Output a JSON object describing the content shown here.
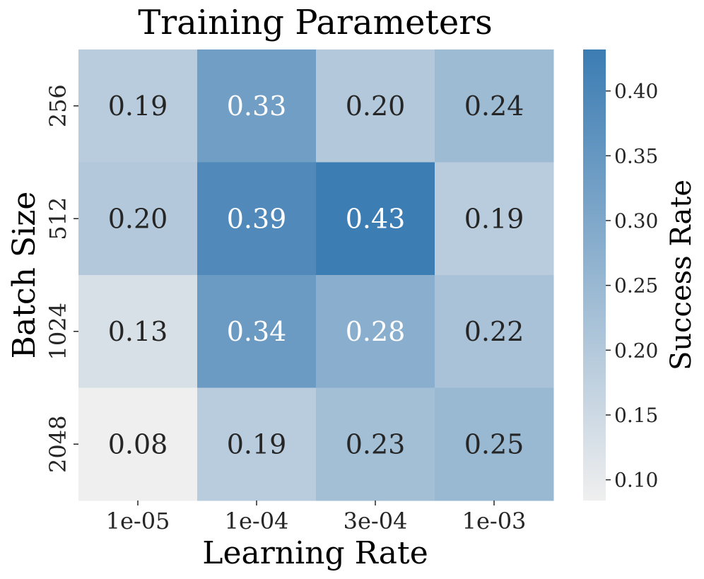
{
  "chart_data": {
    "type": "heatmap",
    "title": "Training Parameters",
    "xlabel": "Learning Rate",
    "ylabel": "Batch Size",
    "x_categories": [
      "1e-05",
      "1e-04",
      "3e-04",
      "1e-03"
    ],
    "y_categories": [
      "256",
      "512",
      "1024",
      "2048"
    ],
    "values": [
      [
        0.19,
        0.33,
        0.2,
        0.24
      ],
      [
        0.2,
        0.39,
        0.43,
        0.19
      ],
      [
        0.13,
        0.34,
        0.28,
        0.22
      ],
      [
        0.08,
        0.19,
        0.23,
        0.25
      ]
    ],
    "value_labels": [
      [
        "0.19",
        "0.33",
        "0.20",
        "0.24"
      ],
      [
        "0.20",
        "0.39",
        "0.43",
        "0.19"
      ],
      [
        "0.13",
        "0.34",
        "0.28",
        "0.22"
      ],
      [
        "0.08",
        "0.19",
        "0.23",
        "0.25"
      ]
    ],
    "colorbar": {
      "label": "Success Rate",
      "vmin": 0.084,
      "vmax": 0.432,
      "ticks": [
        0.1,
        0.15,
        0.2,
        0.25,
        0.3,
        0.35,
        0.4
      ],
      "tick_labels": [
        "0.10",
        "0.15",
        "0.20",
        "0.25",
        "0.30",
        "0.35",
        "0.40"
      ],
      "color_low": "#efefef",
      "color_high": "#3b7cb3"
    },
    "text_color_dark": "#262626",
    "text_color_light": "#ffffff"
  }
}
